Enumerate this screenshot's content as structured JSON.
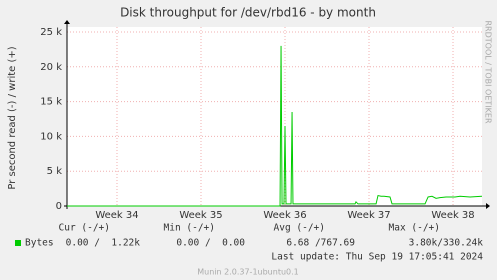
{
  "chart_data": {
    "type": "line",
    "title": "Disk throughput for /dev/rbd16 - by month",
    "y_label": "Pr second read (-) / write (+)",
    "side_label": "RRDTOOL / TOBI OETIKER",
    "x": [
      33.405,
      35.917,
      35.941,
      35.953,
      35.965,
      35.988,
      36.0,
      36.012,
      36.072,
      36.084,
      36.095,
      36.774,
      36.834,
      36.845,
      36.869,
      37.084,
      37.107,
      37.143,
      37.179,
      37.25,
      37.274,
      37.667,
      37.703,
      37.75,
      37.798,
      37.845,
      37.917,
      38.024,
      38.084,
      38.203,
      38.345
    ],
    "series": [
      {
        "name": "Bytes",
        "color": "#00cc00",
        "values": [
          0,
          0,
          0,
          23000,
          300,
          300,
          11500,
          300,
          300,
          13500,
          300,
          300,
          300,
          600,
          300,
          300,
          1500,
          1400,
          1400,
          1300,
          300,
          300,
          1300,
          1400,
          1100,
          1200,
          1300,
          1300,
          1400,
          1300,
          1400
        ],
        "stats": [
          "0.00 /  1.22k",
          "0.00 /  0.00",
          "6.68 /767.69",
          "3.80k/330.24k"
        ]
      }
    ],
    "stats_headers": [
      "Cur (-/+)",
      "Min (-/+)",
      "Avg (-/+)",
      "Max (-/+)"
    ],
    "xlim": [
      33.405,
      38.345
    ],
    "xticks": [
      {
        "value": 34,
        "label": "Week 34"
      },
      {
        "value": 35,
        "label": "Week 35"
      },
      {
        "value": 36,
        "label": "Week 36"
      },
      {
        "value": 37,
        "label": "Week 37"
      },
      {
        "value": 38,
        "label": "Week 38"
      }
    ],
    "ylim": [
      0,
      25000
    ],
    "yticks": [
      0,
      {
        "value": 5000,
        "label": "5 k"
      },
      {
        "value": 10000,
        "label": "10 k"
      },
      {
        "value": 15000,
        "label": "15 k"
      },
      {
        "value": 20000,
        "label": "20 k"
      },
      {
        "value": 25000,
        "label": "25 k"
      }
    ],
    "grid": true,
    "last_update": "Last update: Thu Sep 19 17:05:41 2024",
    "footer": "Munin 2.0.37-1ubuntu0.1"
  }
}
